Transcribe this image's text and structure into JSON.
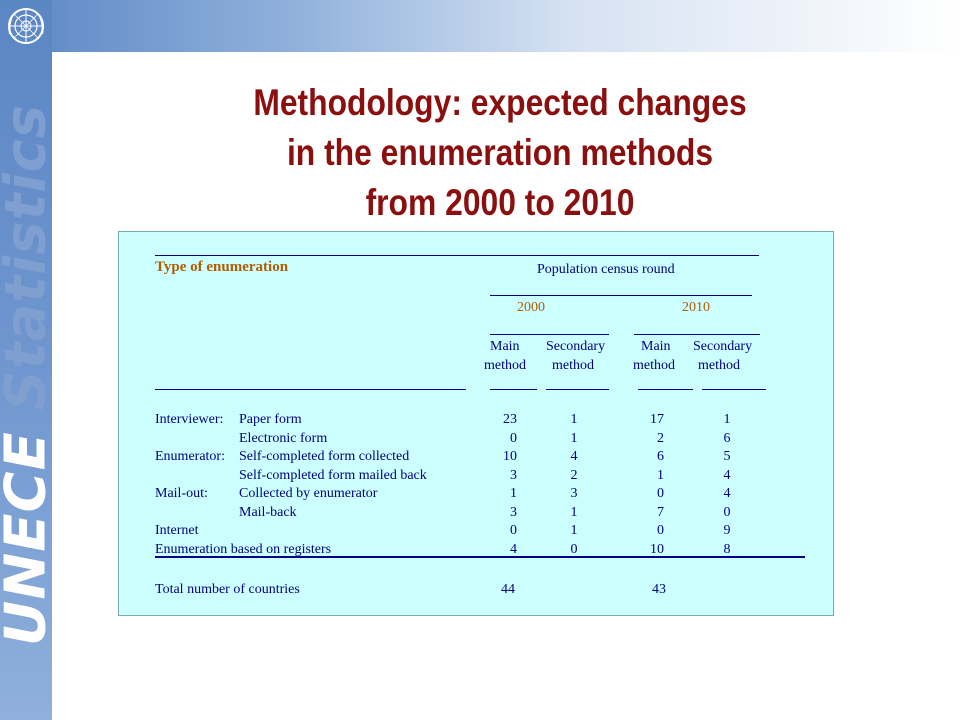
{
  "slide": {
    "title_lines": [
      "Methodology: expected changes",
      "in the enumeration methods",
      "from 2000 to 2010"
    ],
    "brand_unece": "UNECE",
    "brand_statistics": "Statistics"
  },
  "table": {
    "type_header": "Type of enumeration",
    "round_header": "Population census round",
    "years": [
      "2000",
      "2010"
    ],
    "col_headers": {
      "main_line1": "Main",
      "main_line2": "method",
      "secondary_line1": "Secondary",
      "secondary_line2": "method"
    },
    "rows": [
      {
        "group": "Interviewer:",
        "label": "Paper form",
        "m2000": "23",
        "s2000": "1",
        "m2010": "17",
        "s2010": "1"
      },
      {
        "group": "",
        "label": "Electronic form",
        "m2000": "0",
        "s2000": "1",
        "m2010": "2",
        "s2010": "6"
      },
      {
        "group": "Enumerator:",
        "label": "Self-completed form collected",
        "m2000": "10",
        "s2000": "4",
        "m2010": "6",
        "s2010": "5"
      },
      {
        "group": "",
        "label": "Self-completed form mailed back",
        "m2000": "3",
        "s2000": "2",
        "m2010": "1",
        "s2010": "4"
      },
      {
        "group": "Mail-out:",
        "label": "Collected by enumerator",
        "m2000": "1",
        "s2000": "3",
        "m2010": "0",
        "s2010": "4"
      },
      {
        "group": "",
        "label": "Mail-back",
        "m2000": "3",
        "s2000": "1",
        "m2010": "7",
        "s2010": "0"
      },
      {
        "group": "Internet",
        "label": "",
        "m2000": "0",
        "s2000": "1",
        "m2010": "0",
        "s2010": "9"
      },
      {
        "group": "Enumeration based on registers",
        "label": "",
        "m2000": "4",
        "s2000": "0",
        "m2010": "10",
        "s2010": "8"
      }
    ],
    "total_label": "Total number of countries",
    "total_2000": "44",
    "total_2010": "43"
  }
}
